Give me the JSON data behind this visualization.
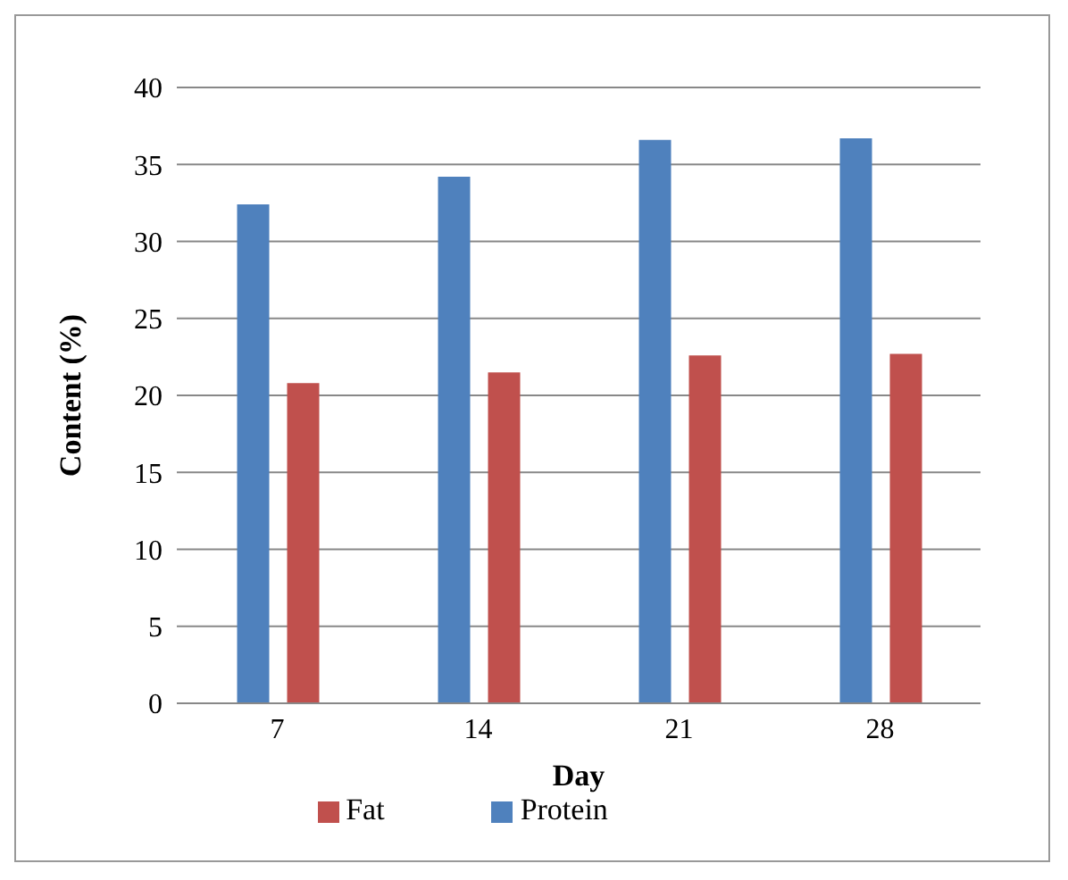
{
  "chart_data": {
    "type": "bar",
    "xlabel": "Day",
    "ylabel": "Content (%)",
    "categories": [
      "7",
      "14",
      "21",
      "28"
    ],
    "series": [
      {
        "name": "Protein",
        "color": "#4f81bd",
        "values": [
          32.4,
          34.2,
          36.6,
          36.7
        ]
      },
      {
        "name": "Fat",
        "color": "#c0504d",
        "values": [
          20.8,
          21.5,
          22.6,
          22.7
        ]
      }
    ],
    "ylim": [
      0,
      40
    ],
    "yticks": [
      0,
      5,
      10,
      15,
      20,
      25,
      30,
      35,
      40
    ],
    "grid": "y",
    "legend": "bottom"
  }
}
